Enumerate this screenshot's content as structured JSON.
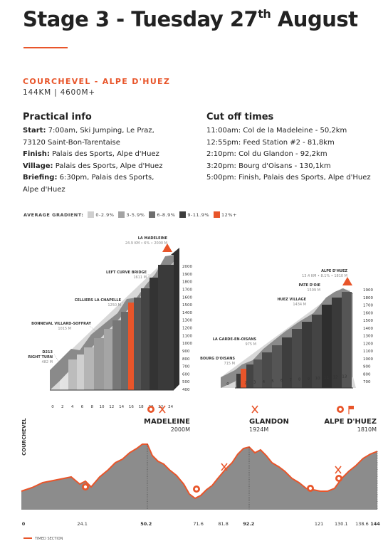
{
  "header": {
    "title_pre": "Stage 3 - Tuesday 27",
    "title_sup": "th",
    "title_post": " August",
    "route": "COURCHEVEL - ALPE D'HUEZ",
    "distance": "144KM | 4600M+"
  },
  "practical": {
    "heading": "Practical info",
    "start_label": "Start:",
    "start_l1": " 7:00am, Ski Jumping, Le Praz,",
    "start_l2": "73120 Saint-Bon-Tarentaise",
    "finish_label": "Finish:",
    "finish_val": " Palais des Sports, Alpe d'Huez",
    "village_label": "Village:",
    "village_val": " Palais des Sports, Alpe d'Huez",
    "briefing_label": "Briefing:",
    "briefing_l1": " 6:30pm, Palais des Sports,",
    "briefing_l2": "Alpe d'Huez"
  },
  "cutoff": {
    "heading": "Cut off times",
    "lines": [
      "11:00am: Col de la Madeleine - 50,2km",
      "12:55pm: Feed Station #2 - 81,8km",
      "2:10pm: Col du Glandon - 92,2km",
      "3:20pm: Bourg d'Oisans - 130,1km",
      "5:00pm: Finish, Palais des Sports, Alpe d'Huez"
    ]
  },
  "legend": {
    "title": "AVERAGE GRADIENT:",
    "items": [
      {
        "label": "0-2.9%",
        "color": "#cfcfcf"
      },
      {
        "label": "3-5.9%",
        "color": "#a3a3a3"
      },
      {
        "label": "6-8.9%",
        "color": "#6e6e6e"
      },
      {
        "label": "9-11.9%",
        "color": "#3c3c3c"
      },
      {
        "label": "12%+",
        "color": "#e8552a"
      }
    ]
  },
  "climb1": {
    "summit": "LA MADELEINE",
    "summit_sub": "24.9 KM • 6% • 2000 M",
    "labels": [
      {
        "name": "LEFT CURVE BRIDGE",
        "sub": "1611 M"
      },
      {
        "name": "CELLIERS LA CHAPELLE",
        "sub": "1250 M"
      },
      {
        "name": "BONNEVAL VILLARD-SOFFRAY",
        "sub": "1015 M"
      },
      {
        "name": "D213",
        "name2": "RIGHT TURN",
        "sub": "482 M"
      }
    ],
    "y_ticks": [
      "2000",
      "1900",
      "1800",
      "1700",
      "1600",
      "1500",
      "1400",
      "1300",
      "1200",
      "1100",
      "1000",
      "900",
      "800",
      "700",
      "600",
      "500",
      "400"
    ],
    "x_ticks": [
      "0",
      "2",
      "4",
      "6",
      "8",
      "10",
      "12",
      "14",
      "16",
      "18",
      "20",
      "22",
      "24"
    ]
  },
  "climb2": {
    "summit": "ALPE D'HUEZ",
    "summit_sub": "13.4 KM • 8.1% • 1810 M",
    "labels": [
      {
        "name": "PATE D'OIE",
        "sub": "1509 M"
      },
      {
        "name": "HUEZ VILLAGE",
        "sub": "1434 M"
      },
      {
        "name": "LA GARDE-EN-OISANS",
        "sub": "975 M"
      },
      {
        "name": "BOURG D'OISANS",
        "sub": "715 M"
      }
    ],
    "y_ticks": [
      "1900",
      "1800",
      "1700",
      "1600",
      "1500",
      "1400",
      "1300",
      "1200",
      "1100",
      "1000",
      "900",
      "800",
      "700"
    ],
    "x_ticks": [
      "0",
      "1",
      "2",
      "3",
      "4",
      "5",
      "6",
      "7",
      "8",
      "9",
      "10",
      "11",
      "12",
      "13"
    ]
  },
  "profile": {
    "start": "COURCHEVEL",
    "summits": [
      {
        "name": "MADELEINE",
        "alt": "2000M"
      },
      {
        "name": "GLANDON",
        "alt": "1924M"
      },
      {
        "name": "ALPE D'HUEZ",
        "alt": "1810M"
      }
    ],
    "km_labels": [
      "0",
      "24.1",
      "50.2",
      "71.6",
      "81.8",
      "92.2",
      "121",
      "130.1",
      "138.6",
      "144"
    ],
    "timed_label": "TIMED SECTION"
  }
}
